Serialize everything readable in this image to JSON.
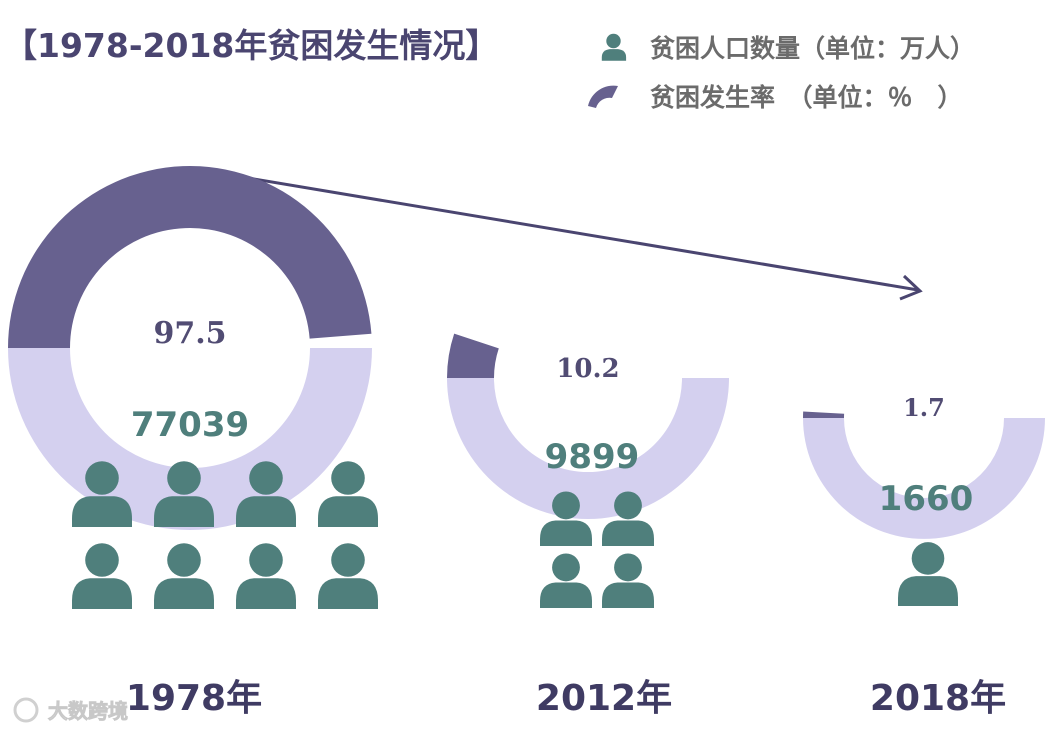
{
  "title": "【1978-2018年贫困发生情况】",
  "legend": {
    "population": "贫困人口数量（单位：万人）",
    "rate": "贫困发生率　（单位：％　）"
  },
  "watermark": "大数跨境",
  "colors": {
    "rate_filled": "#67618f",
    "rate_track": "#d4d0ef",
    "people": "#4f7f7c",
    "trend_arrow": "#4a4570"
  },
  "icons": {
    "people": "person-icon",
    "rate": "gauge-arc-icon",
    "trend": "arrow-right-icon"
  },
  "chart_data": {
    "type": "gauge",
    "title": "【1978-2018年贫困发生情况】",
    "categories": [
      "1978年",
      "2012年",
      "2018年"
    ],
    "series": [
      {
        "name": "贫困人口数量（单位：万人）",
        "values": [
          77039,
          9899,
          1660
        ],
        "icon_counts": [
          8,
          4,
          1
        ]
      },
      {
        "name": "贫困发生率　（单位：％　）",
        "values": [
          97.5,
          10.2,
          1.7
        ],
        "range": [
          0,
          100
        ]
      }
    ],
    "value_labels": {
      "rate": [
        "97.5",
        "10.2",
        "1.7"
      ],
      "population": [
        "77039",
        "9899",
        "1660"
      ]
    },
    "legend_position": "top-right"
  }
}
